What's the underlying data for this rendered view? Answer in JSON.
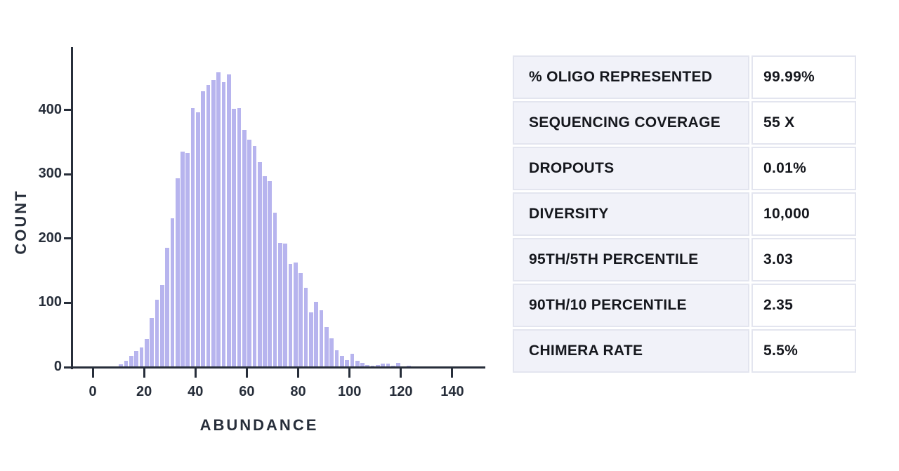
{
  "chart_data": {
    "type": "bar",
    "title": "",
    "xlabel": "ABUNDANCE",
    "ylabel": "COUNT",
    "bin_width": 2,
    "bin_starts": [
      10,
      12,
      14,
      16,
      18,
      20,
      22,
      24,
      26,
      28,
      30,
      32,
      34,
      36,
      38,
      40,
      42,
      44,
      46,
      48,
      50,
      52,
      54,
      56,
      58,
      60,
      62,
      64,
      66,
      68,
      70,
      72,
      74,
      76,
      78,
      80,
      82,
      84,
      86,
      88,
      90,
      92,
      94,
      96,
      98,
      100,
      102,
      104,
      106,
      108,
      110,
      112,
      114,
      116,
      118,
      120,
      122,
      124
    ],
    "values": [
      4,
      10,
      17,
      25,
      31,
      44,
      76,
      105,
      128,
      186,
      232,
      294,
      335,
      333,
      403,
      397,
      429,
      439,
      447,
      459,
      443,
      455,
      402,
      403,
      369,
      354,
      344,
      319,
      297,
      289,
      240,
      193,
      192,
      161,
      163,
      146,
      123,
      85,
      102,
      89,
      62,
      45,
      26,
      17,
      11,
      21,
      10,
      7,
      3,
      2,
      3,
      5,
      5,
      2,
      7,
      1,
      2,
      1
    ],
    "x_ticks": [
      0,
      20,
      40,
      60,
      80,
      100,
      120,
      140
    ],
    "y_ticks": [
      0,
      100,
      200,
      300,
      400
    ],
    "xlim": [
      -9,
      153
    ],
    "ylim": [
      0,
      495
    ],
    "grid": false,
    "legend": "none",
    "bar_color": "#b7b4ee",
    "axis_color": "#272e3a"
  },
  "table": {
    "rows": [
      {
        "label": "% OLIGO REPRESENTED",
        "value": "99.99%"
      },
      {
        "label": "SEQUENCING COVERAGE",
        "value": "55 X"
      },
      {
        "label": "DROPOUTS",
        "value": "0.01%"
      },
      {
        "label": "DIVERSITY",
        "value": "10,000"
      },
      {
        "label": "95TH/5TH PERCENTILE",
        "value": "3.03"
      },
      {
        "label": "90TH/10 PERCENTILE",
        "value": "2.35"
      },
      {
        "label": "CHIMERA RATE",
        "value": "5.5%"
      }
    ]
  }
}
